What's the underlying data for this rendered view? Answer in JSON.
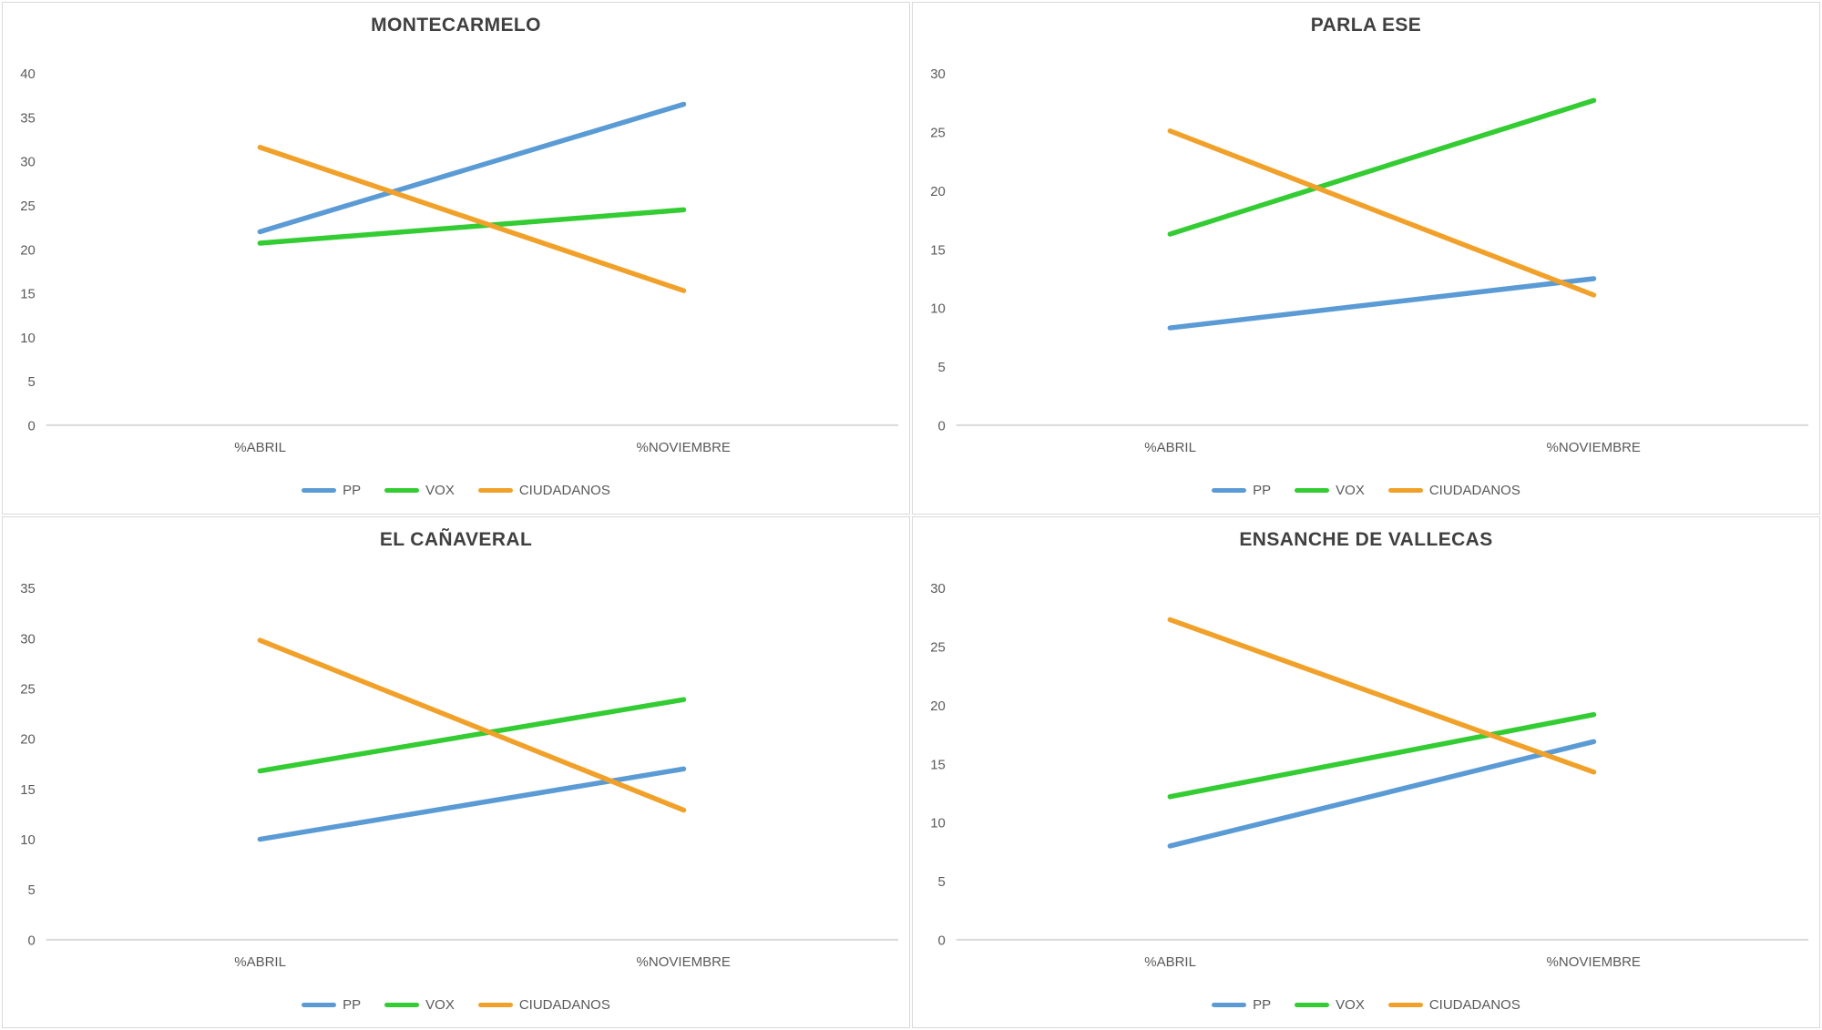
{
  "page": {
    "background": "#ffffff",
    "panel_border_color": "#d9d9d9",
    "title_text_color": "#404040",
    "axis_text_color": "#595959",
    "axis_line_color": "#d9d9d9"
  },
  "chart_data": [
    {
      "type": "line",
      "title": "MONTECARMELO",
      "categories": [
        "%ABRIL",
        "%NOVIEMBRE"
      ],
      "series": [
        {
          "name": "PP",
          "color": "#5B9BD5",
          "values": [
            22.0,
            36.5
          ]
        },
        {
          "name": "VOX",
          "color": "#33CC33",
          "values": [
            20.7,
            24.5
          ]
        },
        {
          "name": "CIUDADANOS",
          "color": "#F1A129",
          "values": [
            31.6,
            15.3
          ]
        }
      ],
      "ylim": [
        0,
        40
      ],
      "ytick_step": 5,
      "grid": false,
      "legend_position": "bottom"
    },
    {
      "type": "line",
      "title": "PARLA ESE",
      "categories": [
        "%ABRIL",
        "%NOVIEMBRE"
      ],
      "series": [
        {
          "name": "PP",
          "color": "#5B9BD5",
          "values": [
            8.3,
            12.5
          ]
        },
        {
          "name": "VOX",
          "color": "#33CC33",
          "values": [
            16.3,
            27.7
          ]
        },
        {
          "name": "CIUDADANOS",
          "color": "#F1A129",
          "values": [
            25.1,
            11.1
          ]
        }
      ],
      "ylim": [
        0,
        30
      ],
      "ytick_step": 5,
      "grid": false,
      "legend_position": "bottom"
    },
    {
      "type": "line",
      "title": "EL CAÑAVERAL",
      "categories": [
        "%ABRIL",
        "%NOVIEMBRE"
      ],
      "series": [
        {
          "name": "PP",
          "color": "#5B9BD5",
          "values": [
            10.0,
            17.0
          ]
        },
        {
          "name": "VOX",
          "color": "#33CC33",
          "values": [
            16.8,
            23.9
          ]
        },
        {
          "name": "CIUDADANOS",
          "color": "#F1A129",
          "values": [
            29.8,
            12.9
          ]
        }
      ],
      "ylim": [
        0,
        35
      ],
      "ytick_step": 5,
      "grid": false,
      "legend_position": "bottom"
    },
    {
      "type": "line",
      "title": "ENSANCHE DE VALLECAS",
      "categories": [
        "%ABRIL",
        "%NOVIEMBRE"
      ],
      "series": [
        {
          "name": "PP",
          "color": "#5B9BD5",
          "values": [
            8.0,
            16.9
          ]
        },
        {
          "name": "VOX",
          "color": "#33CC33",
          "values": [
            12.2,
            19.2
          ]
        },
        {
          "name": "CIUDADANOS",
          "color": "#F1A129",
          "values": [
            27.3,
            14.3
          ]
        }
      ],
      "ylim": [
        0,
        30
      ],
      "ytick_step": 5,
      "grid": false,
      "legend_position": "bottom"
    }
  ]
}
